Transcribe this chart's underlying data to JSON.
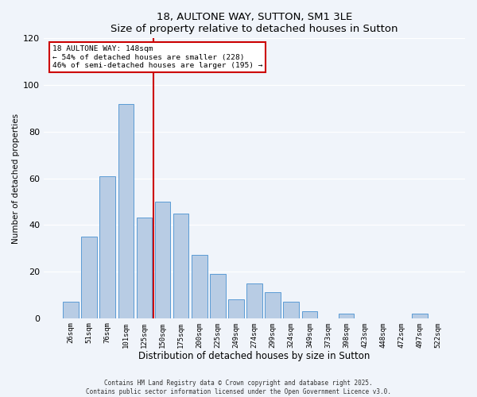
{
  "title": "18, AULTONE WAY, SUTTON, SM1 3LE",
  "subtitle": "Size of property relative to detached houses in Sutton",
  "xlabel": "Distribution of detached houses by size in Sutton",
  "ylabel": "Number of detached properties",
  "categories": [
    "26sqm",
    "51sqm",
    "76sqm",
    "101sqm",
    "125sqm",
    "150sqm",
    "175sqm",
    "200sqm",
    "225sqm",
    "249sqm",
    "274sqm",
    "299sqm",
    "324sqm",
    "349sqm",
    "373sqm",
    "398sqm",
    "423sqm",
    "448sqm",
    "472sqm",
    "497sqm",
    "522sqm"
  ],
  "values": [
    7,
    35,
    61,
    92,
    43,
    50,
    45,
    27,
    19,
    8,
    15,
    11,
    7,
    3,
    0,
    2,
    0,
    0,
    0,
    2,
    0
  ],
  "bar_color": "#b8cce4",
  "bar_edge_color": "#5b9bd5",
  "vline_color": "#cc0000",
  "annotation_title": "18 AULTONE WAY: 148sqm",
  "annotation_line1": "← 54% of detached houses are smaller (228)",
  "annotation_line2": "46% of semi-detached houses are larger (195) →",
  "annotation_box_color": "#ffffff",
  "annotation_box_edge": "#cc0000",
  "ylim": [
    0,
    120
  ],
  "yticks": [
    0,
    20,
    40,
    60,
    80,
    100,
    120
  ],
  "footer1": "Contains HM Land Registry data © Crown copyright and database right 2025.",
  "footer2": "Contains public sector information licensed under the Open Government Licence v3.0.",
  "background_color": "#f0f4fa",
  "plot_background": "#f0f4fa"
}
